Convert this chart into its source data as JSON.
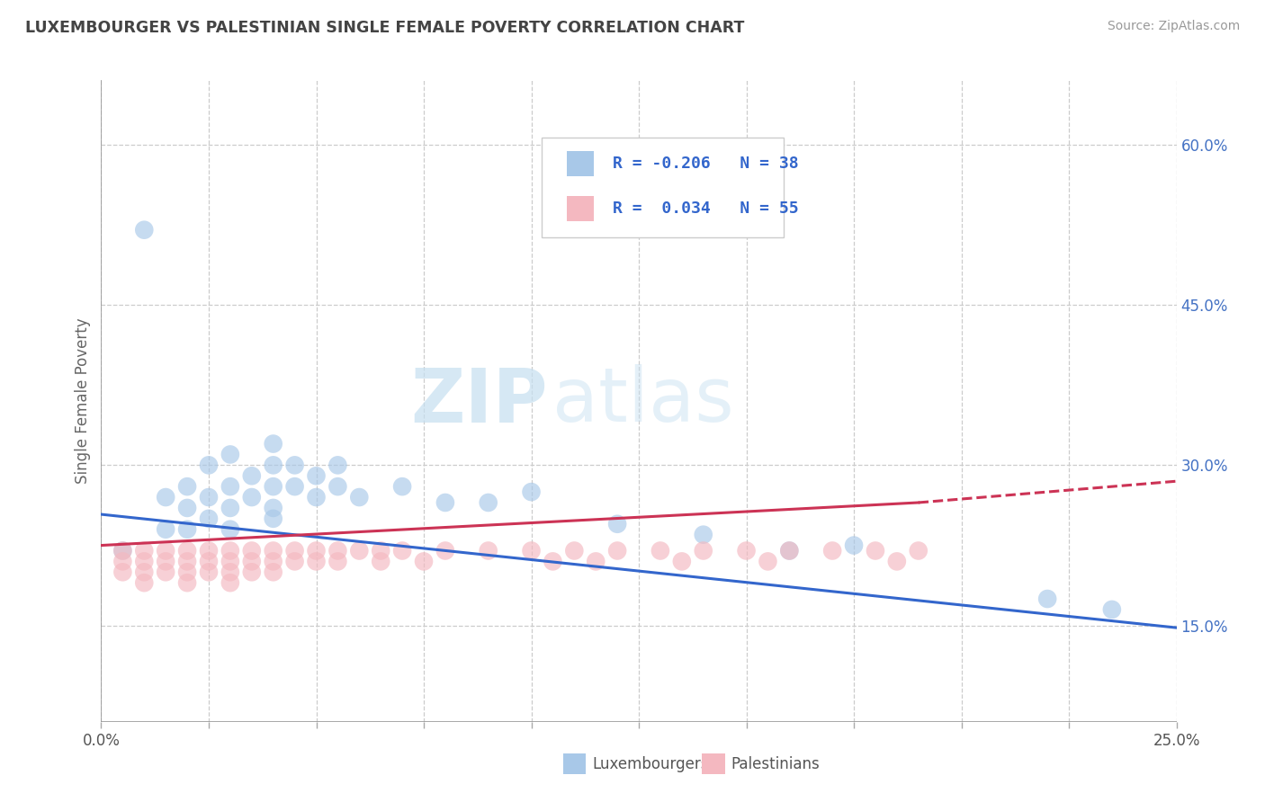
{
  "title": "LUXEMBOURGER VS PALESTINIAN SINGLE FEMALE POVERTY CORRELATION CHART",
  "source": "Source: ZipAtlas.com",
  "ylabel": "Single Female Poverty",
  "xlim": [
    0.0,
    0.25
  ],
  "ylim": [
    0.06,
    0.66
  ],
  "xtick_vals": [
    0.0,
    0.025,
    0.05,
    0.075,
    0.1,
    0.125,
    0.15,
    0.175,
    0.2,
    0.225,
    0.25
  ],
  "xtick_label_vals": [
    0.0,
    0.25
  ],
  "xtick_label_texts": [
    "0.0%",
    "25.0%"
  ],
  "ytick_vals": [
    0.15,
    0.3,
    0.45,
    0.6
  ],
  "ytick_labels": [
    "15.0%",
    "30.0%",
    "45.0%",
    "60.0%"
  ],
  "legend_R_blue": "-0.206",
  "legend_N_blue": "38",
  "legend_R_pink": "0.034",
  "legend_N_pink": "55",
  "blue_color": "#a8c8e8",
  "pink_color": "#f4b8c0",
  "blue_line_color": "#3366cc",
  "pink_line_color": "#cc3355",
  "watermark_zip": "ZIP",
  "watermark_atlas": "atlas",
  "blue_scatter_x": [
    0.005,
    0.01,
    0.015,
    0.015,
    0.02,
    0.02,
    0.02,
    0.025,
    0.025,
    0.025,
    0.03,
    0.03,
    0.03,
    0.03,
    0.035,
    0.035,
    0.04,
    0.04,
    0.04,
    0.04,
    0.04,
    0.045,
    0.045,
    0.05,
    0.05,
    0.055,
    0.055,
    0.06,
    0.07,
    0.08,
    0.09,
    0.1,
    0.12,
    0.14,
    0.16,
    0.175,
    0.22,
    0.235
  ],
  "blue_scatter_y": [
    0.22,
    0.52,
    0.27,
    0.24,
    0.28,
    0.26,
    0.24,
    0.3,
    0.27,
    0.25,
    0.31,
    0.28,
    0.26,
    0.24,
    0.29,
    0.27,
    0.32,
    0.3,
    0.28,
    0.26,
    0.25,
    0.3,
    0.28,
    0.29,
    0.27,
    0.3,
    0.28,
    0.27,
    0.28,
    0.265,
    0.265,
    0.275,
    0.245,
    0.235,
    0.22,
    0.225,
    0.175,
    0.165
  ],
  "pink_scatter_x": [
    0.005,
    0.005,
    0.005,
    0.01,
    0.01,
    0.01,
    0.01,
    0.015,
    0.015,
    0.015,
    0.02,
    0.02,
    0.02,
    0.02,
    0.025,
    0.025,
    0.025,
    0.03,
    0.03,
    0.03,
    0.03,
    0.035,
    0.035,
    0.035,
    0.04,
    0.04,
    0.04,
    0.045,
    0.045,
    0.05,
    0.05,
    0.055,
    0.055,
    0.06,
    0.065,
    0.065,
    0.07,
    0.075,
    0.08,
    0.09,
    0.1,
    0.105,
    0.11,
    0.115,
    0.12,
    0.13,
    0.135,
    0.14,
    0.15,
    0.155,
    0.16,
    0.17,
    0.18,
    0.185,
    0.19
  ],
  "pink_scatter_y": [
    0.22,
    0.21,
    0.2,
    0.22,
    0.21,
    0.2,
    0.19,
    0.22,
    0.21,
    0.2,
    0.22,
    0.21,
    0.2,
    0.19,
    0.22,
    0.21,
    0.2,
    0.22,
    0.21,
    0.2,
    0.19,
    0.22,
    0.21,
    0.2,
    0.22,
    0.21,
    0.2,
    0.22,
    0.21,
    0.22,
    0.21,
    0.22,
    0.21,
    0.22,
    0.22,
    0.21,
    0.22,
    0.21,
    0.22,
    0.22,
    0.22,
    0.21,
    0.22,
    0.21,
    0.22,
    0.22,
    0.21,
    0.22,
    0.22,
    0.21,
    0.22,
    0.22,
    0.22,
    0.21,
    0.22
  ]
}
